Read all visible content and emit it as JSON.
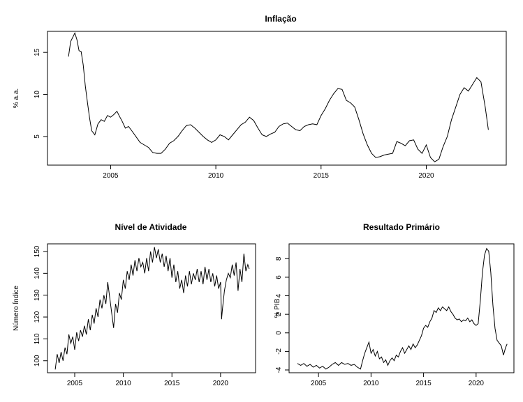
{
  "chart_data": [
    {
      "type": "line",
      "title": "Inflação",
      "xlabel": "",
      "ylabel": "% a.a.",
      "xticks": [
        2005,
        2010,
        2015,
        2020
      ],
      "yticks": [
        5,
        10,
        15
      ],
      "xlim": [
        2002.0,
        2023.8
      ],
      "ylim": [
        1.6,
        17.5
      ],
      "series": [
        {
          "x": [
            2003.0,
            2003.1,
            2003.2,
            2003.3,
            2003.4,
            2003.5,
            2003.6,
            2003.7,
            2003.8,
            2003.9,
            2004.0,
            2004.1,
            2004.25,
            2004.4,
            2004.55,
            2004.7,
            2004.85,
            2005.0,
            2005.15,
            2005.3,
            2005.4,
            2005.55,
            2005.7,
            2005.85,
            2006.0,
            2006.2,
            2006.4,
            2006.6,
            2006.8,
            2007.0,
            2007.2,
            2007.4,
            2007.6,
            2007.8,
            2008.0,
            2008.2,
            2008.4,
            2008.6,
            2008.8,
            2009.0,
            2009.2,
            2009.4,
            2009.6,
            2009.8,
            2010.0,
            2010.2,
            2010.4,
            2010.6,
            2010.8,
            2011.0,
            2011.2,
            2011.4,
            2011.6,
            2011.8,
            2012.0,
            2012.2,
            2012.4,
            2012.6,
            2012.8,
            2013.0,
            2013.2,
            2013.4,
            2013.6,
            2013.8,
            2014.0,
            2014.2,
            2014.4,
            2014.6,
            2014.8,
            2015.0,
            2015.2,
            2015.4,
            2015.6,
            2015.8,
            2016.0,
            2016.2,
            2016.4,
            2016.6,
            2016.8,
            2017.0,
            2017.2,
            2017.4,
            2017.6,
            2017.8,
            2018.0,
            2018.2,
            2018.4,
            2018.6,
            2018.8,
            2019.0,
            2019.2,
            2019.4,
            2019.6,
            2019.8,
            2020.0,
            2020.2,
            2020.4,
            2020.6,
            2020.8,
            2021.0,
            2021.2,
            2021.4,
            2021.6,
            2021.8,
            2022.0,
            2022.2,
            2022.4,
            2022.6,
            2022.8,
            2022.95
          ],
          "y": [
            14.5,
            16.3,
            16.8,
            17.3,
            16.5,
            15.2,
            15.1,
            13.5,
            11.0,
            9.0,
            7.2,
            5.7,
            5.2,
            6.5,
            7.0,
            6.8,
            7.5,
            7.3,
            7.6,
            8.0,
            7.5,
            6.8,
            6.0,
            6.2,
            5.7,
            5.0,
            4.3,
            4.0,
            3.7,
            3.1,
            3.0,
            3.0,
            3.5,
            4.2,
            4.5,
            5.0,
            5.7,
            6.3,
            6.4,
            6.0,
            5.5,
            5.0,
            4.6,
            4.3,
            4.6,
            5.2,
            5.0,
            4.6,
            5.2,
            5.8,
            6.4,
            6.7,
            7.3,
            6.9,
            6.0,
            5.2,
            5.0,
            5.3,
            5.5,
            6.2,
            6.5,
            6.6,
            6.2,
            5.8,
            5.7,
            6.2,
            6.4,
            6.5,
            6.4,
            7.5,
            8.3,
            9.3,
            10.1,
            10.7,
            10.6,
            9.3,
            9.0,
            8.5,
            7.0,
            5.3,
            4.0,
            3.0,
            2.5,
            2.6,
            2.8,
            2.9,
            3.0,
            4.4,
            4.2,
            3.9,
            4.5,
            4.6,
            3.5,
            3.0,
            4.0,
            2.5,
            2.0,
            2.3,
            3.8,
            5.0,
            7.0,
            8.5,
            10.0,
            10.8,
            10.4,
            11.2,
            12.0,
            11.5,
            8.5,
            5.8
          ]
        }
      ]
    },
    {
      "type": "line",
      "title": "Nível de Atividade",
      "xlabel": "",
      "ylabel": "Número Índice",
      "xticks": [
        2005,
        2010,
        2015,
        2020
      ],
      "yticks": [
        100,
        110,
        120,
        130,
        140,
        150
      ],
      "xlim": [
        2002.2,
        2023.6
      ],
      "ylim": [
        94.5,
        153.5
      ],
      "series": [
        {
          "x": [
            2003.0,
            2003.2,
            2003.4,
            2003.6,
            2003.8,
            2004.0,
            2004.2,
            2004.4,
            2004.6,
            2004.8,
            2005.0,
            2005.2,
            2005.4,
            2005.6,
            2005.8,
            2006.0,
            2006.2,
            2006.4,
            2006.6,
            2006.8,
            2007.0,
            2007.2,
            2007.4,
            2007.6,
            2007.8,
            2008.0,
            2008.2,
            2008.4,
            2008.6,
            2008.8,
            2009.0,
            2009.2,
            2009.4,
            2009.6,
            2009.8,
            2010.0,
            2010.2,
            2010.4,
            2010.6,
            2010.8,
            2011.0,
            2011.2,
            2011.4,
            2011.6,
            2011.8,
            2012.0,
            2012.2,
            2012.4,
            2012.6,
            2012.8,
            2013.0,
            2013.2,
            2013.4,
            2013.6,
            2013.8,
            2014.0,
            2014.2,
            2014.4,
            2014.6,
            2014.8,
            2015.0,
            2015.2,
            2015.4,
            2015.6,
            2015.8,
            2016.0,
            2016.2,
            2016.4,
            2016.6,
            2016.8,
            2017.0,
            2017.2,
            2017.4,
            2017.6,
            2017.8,
            2018.0,
            2018.2,
            2018.4,
            2018.6,
            2018.8,
            2019.0,
            2019.2,
            2019.4,
            2019.6,
            2019.8,
            2020.0,
            2020.1,
            2020.2,
            2020.4,
            2020.6,
            2020.8,
            2021.0,
            2021.2,
            2021.4,
            2021.6,
            2021.8,
            2022.0,
            2022.2,
            2022.4,
            2022.6,
            2022.8,
            2022.95
          ],
          "y": [
            96,
            103,
            99,
            104,
            100,
            106,
            103,
            112,
            108,
            111,
            105,
            113,
            109,
            114,
            111,
            116,
            112,
            119,
            114,
            121,
            117,
            124,
            120,
            128,
            124,
            130,
            126,
            136,
            129,
            122,
            115,
            126,
            122,
            131,
            128,
            137,
            133,
            141,
            137,
            144,
            139,
            146,
            141,
            147,
            143,
            145,
            140,
            147,
            141,
            150,
            145,
            152,
            147,
            151,
            145,
            149,
            143,
            148,
            141,
            147,
            138,
            144,
            136,
            141,
            133,
            137,
            131,
            139,
            134,
            141,
            135,
            140,
            137,
            142,
            136,
            141,
            135,
            143,
            137,
            142,
            136,
            140,
            134,
            139,
            133,
            136,
            119,
            124,
            132,
            137,
            140,
            138,
            144,
            139,
            145,
            132,
            142,
            136,
            149,
            141,
            144,
            142
          ]
        }
      ]
    },
    {
      "type": "line",
      "title": "Resultado Primário",
      "xlabel": "",
      "ylabel": "% PIB",
      "xticks": [
        2005,
        2010,
        2015,
        2020
      ],
      "yticks": [
        -4,
        -2,
        0,
        2,
        4,
        6,
        8
      ],
      "xlim": [
        2002.2,
        2023.6
      ],
      "ylim": [
        -4.3,
        9.6
      ],
      "series": [
        {
          "x": [
            2003.0,
            2003.3,
            2003.6,
            2003.9,
            2004.2,
            2004.5,
            2004.8,
            2005.1,
            2005.4,
            2005.7,
            2006.0,
            2006.3,
            2006.6,
            2006.9,
            2007.2,
            2007.5,
            2007.8,
            2008.1,
            2008.4,
            2008.7,
            2009.0,
            2009.2,
            2009.4,
            2009.6,
            2009.8,
            2010.0,
            2010.2,
            2010.4,
            2010.6,
            2010.8,
            2011.0,
            2011.2,
            2011.4,
            2011.6,
            2011.8,
            2012.0,
            2012.2,
            2012.4,
            2012.6,
            2012.8,
            2013.0,
            2013.2,
            2013.4,
            2013.6,
            2013.8,
            2014.0,
            2014.2,
            2014.4,
            2014.6,
            2014.8,
            2015.0,
            2015.2,
            2015.4,
            2015.6,
            2015.8,
            2016.0,
            2016.2,
            2016.4,
            2016.6,
            2016.8,
            2017.0,
            2017.2,
            2017.4,
            2017.6,
            2017.8,
            2018.0,
            2018.2,
            2018.4,
            2018.6,
            2018.8,
            2019.0,
            2019.2,
            2019.4,
            2019.6,
            2019.8,
            2020.0,
            2020.2,
            2020.4,
            2020.6,
            2020.8,
            2021.0,
            2021.2,
            2021.4,
            2021.6,
            2021.8,
            2022.0,
            2022.2,
            2022.4,
            2022.6,
            2022.8,
            2022.95
          ],
          "y": [
            -3.3,
            -3.5,
            -3.3,
            -3.6,
            -3.4,
            -3.7,
            -3.5,
            -3.8,
            -3.6,
            -3.9,
            -3.7,
            -3.4,
            -3.2,
            -3.5,
            -3.2,
            -3.4,
            -3.3,
            -3.5,
            -3.4,
            -3.7,
            -3.9,
            -3.0,
            -2.2,
            -1.6,
            -1.0,
            -2.2,
            -1.8,
            -2.5,
            -2.0,
            -2.8,
            -2.6,
            -3.2,
            -2.9,
            -3.5,
            -3.0,
            -2.7,
            -3.0,
            -2.4,
            -2.6,
            -2.0,
            -1.6,
            -2.2,
            -1.8,
            -1.4,
            -1.8,
            -1.2,
            -1.6,
            -1.3,
            -0.8,
            -0.3,
            0.5,
            0.8,
            0.6,
            1.2,
            1.6,
            2.4,
            2.2,
            2.7,
            2.4,
            2.8,
            2.6,
            2.4,
            2.8,
            2.3,
            2.0,
            1.6,
            1.4,
            1.5,
            1.2,
            1.4,
            1.3,
            1.6,
            1.2,
            1.4,
            1.0,
            0.8,
            1.0,
            3.5,
            6.5,
            8.4,
            9.1,
            8.8,
            6.5,
            3.0,
            0.5,
            -0.8,
            -1.1,
            -1.4,
            -2.4,
            -1.6,
            -1.2
          ]
        }
      ]
    }
  ]
}
